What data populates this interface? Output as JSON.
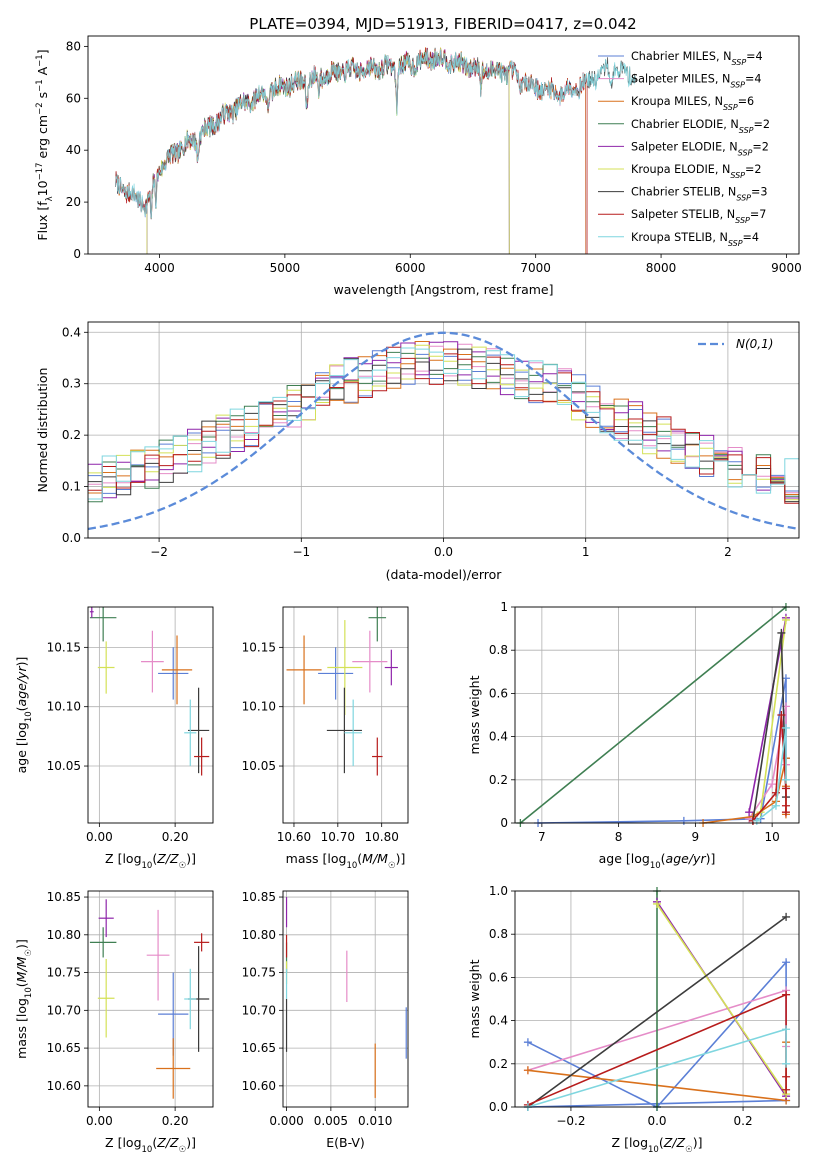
{
  "figure_title": "PLATE=0394, MJD=51913, FIBERID=0417, z=0.042",
  "colors": {
    "Chabrier MILES": "#5b7fd6",
    "Salpeter MILES": "#e58cc8",
    "Kroupa MILES": "#d9711c",
    "Chabrier ELODIE": "#3f7f52",
    "Salpeter ELODIE": "#8e24aa",
    "Kroupa ELODIE": "#d4e157",
    "Chabrier STELIB": "#3c3c3c",
    "Salpeter STELIB": "#b71c1c",
    "Kroupa STELIB": "#7fd6df",
    "gaussian": "#5b8bd9"
  },
  "chart_data": [
    {
      "id": "spectrum",
      "type": "line",
      "title": "",
      "xlabel": "wavelength [Angstrom, rest frame]",
      "ylabel": "Flux [f_λ 10^-17 erg cm^-2 s^-1 A^-1]",
      "xlim": [
        3430,
        9100
      ],
      "ylim": [
        0,
        84
      ],
      "xticks": [
        4000,
        5000,
        6000,
        7000,
        8000,
        9000
      ],
      "yticks": [
        0,
        20,
        40,
        60,
        80
      ],
      "grid": false,
      "legend_position": "top-right",
      "continuum_anchors": {
        "wavelength": [
          3650,
          3800,
          3900,
          3950,
          4000,
          4100,
          4200,
          4300,
          4400,
          4600,
          4800,
          5000,
          5200,
          5400,
          5600,
          5800,
          6000,
          6200,
          6400,
          6600,
          6800,
          7000,
          7200,
          7400,
          7600,
          7800
        ],
        "flux": [
          27,
          22,
          19,
          27,
          33,
          38,
          42,
          45,
          49,
          56,
          61,
          65,
          67,
          70,
          71,
          72,
          73,
          76,
          73,
          71,
          70,
          64,
          62,
          66,
          72,
          68
        ]
      },
      "series": [
        {
          "name": "Chabrier MILES",
          "n_ssp": "4",
          "range": [
            3650,
            7400
          ]
        },
        {
          "name": "Salpeter MILES",
          "n_ssp": "4",
          "range": [
            3650,
            7400
          ]
        },
        {
          "name": "Kroupa MILES",
          "n_ssp": "6",
          "range": [
            3650,
            7400
          ]
        },
        {
          "name": "Chabrier ELODIE",
          "n_ssp": "2",
          "range": [
            3900,
            6790
          ]
        },
        {
          "name": "Salpeter ELODIE",
          "n_ssp": "2",
          "range": [
            3900,
            6790
          ]
        },
        {
          "name": "Kroupa ELODIE",
          "n_ssp": "2",
          "range": [
            3900,
            6790
          ]
        },
        {
          "name": "Chabrier STELIB",
          "n_ssp": "3",
          "range": [
            3650,
            7800
          ]
        },
        {
          "name": "Salpeter STELIB",
          "n_ssp": "7",
          "range": [
            3650,
            7410
          ]
        },
        {
          "name": "Kroupa STELIB",
          "n_ssp": "4",
          "range": [
            3650,
            7800
          ]
        }
      ]
    },
    {
      "id": "residual_histogram",
      "type": "line",
      "xlabel": "(data-model)/error",
      "ylabel": "Normed distribution",
      "xlim": [
        -2.5,
        2.5
      ],
      "ylim": [
        0,
        0.42
      ],
      "xticks": [
        -2,
        -1,
        0,
        1,
        2
      ],
      "yticks": [
        0.0,
        0.1,
        0.2,
        0.3,
        0.4
      ],
      "grid": true,
      "legend_position": "top-right",
      "legend_label": "N(0,1)",
      "bin_width": 0.1,
      "gaussian": {
        "mean": 0,
        "sigma": 1,
        "peak": 0.399
      }
    },
    {
      "id": "age_vs_Z",
      "type": "scatter",
      "xlabel": "Z [log10(Z/Z☉)]",
      "ylabel": "age [log10(age/yr)]",
      "xlim": [
        -0.03,
        0.3
      ],
      "ylim": [
        10.002,
        10.184
      ],
      "xticks": [
        0.0,
        0.2
      ],
      "yticks": [
        10.05,
        10.1,
        10.15
      ],
      "grid": true,
      "points": [
        {
          "name": "Chabrier MILES",
          "x": 0.195,
          "y": 10.128,
          "xerr": 0.04,
          "yerr": 0.022
        },
        {
          "name": "Salpeter MILES",
          "x": 0.14,
          "y": 10.138,
          "xerr": 0.03,
          "yerr": 0.026
        },
        {
          "name": "Kroupa MILES",
          "x": 0.205,
          "y": 10.131,
          "xerr": 0.04,
          "yerr": 0.029
        },
        {
          "name": "Chabrier ELODIE",
          "x": 0.01,
          "y": 10.175,
          "xerr": 0.035,
          "yerr": 0.02
        },
        {
          "name": "Salpeter ELODIE",
          "x": -0.02,
          "y": 10.18,
          "xerr": 0.005,
          "yerr": 0.005
        },
        {
          "name": "Kroupa ELODIE",
          "x": 0.018,
          "y": 10.133,
          "xerr": 0.022,
          "yerr": 0.022
        },
        {
          "name": "Chabrier STELIB",
          "x": 0.262,
          "y": 10.08,
          "xerr": 0.028,
          "yerr": 0.036
        },
        {
          "name": "Salpeter STELIB",
          "x": 0.27,
          "y": 10.058,
          "xerr": 0.02,
          "yerr": 0.016
        },
        {
          "name": "Kroupa STELIB",
          "x": 0.24,
          "y": 10.078,
          "xerr": 0.016,
          "yerr": 0.028
        }
      ]
    },
    {
      "id": "age_vs_mass",
      "type": "scatter",
      "xlabel": "mass [log10(M/M☉)]",
      "ylabel": "",
      "xlim": [
        10.575,
        10.86
      ],
      "ylim": [
        10.002,
        10.184
      ],
      "xticks": [
        10.6,
        10.7,
        10.8
      ],
      "yticks": [
        10.05,
        10.1,
        10.15
      ],
      "grid": true,
      "points": [
        {
          "name": "Chabrier MILES",
          "x": 10.695,
          "y": 10.128,
          "xerr": 0.04,
          "yerr": 0.022
        },
        {
          "name": "Salpeter MILES",
          "x": 10.773,
          "y": 10.138,
          "xerr": 0.04,
          "yerr": 0.026
        },
        {
          "name": "Kroupa MILES",
          "x": 10.623,
          "y": 10.131,
          "xerr": 0.04,
          "yerr": 0.029
        },
        {
          "name": "Chabrier ELODIE",
          "x": 10.79,
          "y": 10.175,
          "xerr": 0.02,
          "yerr": 0.02
        },
        {
          "name": "Salpeter ELODIE",
          "x": 10.822,
          "y": 10.133,
          "xerr": 0.015,
          "yerr": 0.015
        },
        {
          "name": "Kroupa ELODIE",
          "x": 10.716,
          "y": 10.133,
          "xerr": 0.04,
          "yerr": 0.04
        },
        {
          "name": "Chabrier STELIB",
          "x": 10.715,
          "y": 10.08,
          "xerr": 0.04,
          "yerr": 0.036
        },
        {
          "name": "Salpeter STELIB",
          "x": 10.79,
          "y": 10.058,
          "xerr": 0.012,
          "yerr": 0.016
        },
        {
          "name": "Kroupa STELIB",
          "x": 10.735,
          "y": 10.078,
          "xerr": 0.02,
          "yerr": 0.028
        }
      ]
    },
    {
      "id": "mass_vs_Z",
      "type": "scatter",
      "xlabel": "Z [log10(Z/Z☉)]",
      "ylabel": "mass [log10(M/M☉)]",
      "xlim": [
        -0.03,
        0.3
      ],
      "ylim": [
        10.572,
        10.858
      ],
      "xticks": [
        0.0,
        0.2
      ],
      "yticks": [
        10.6,
        10.65,
        10.7,
        10.75,
        10.8,
        10.85
      ],
      "grid": true,
      "points": [
        {
          "name": "Chabrier MILES",
          "x": 0.195,
          "y": 10.695,
          "xerr": 0.04,
          "yerr": 0.055
        },
        {
          "name": "Salpeter MILES",
          "x": 0.155,
          "y": 10.773,
          "xerr": 0.03,
          "yerr": 0.06
        },
        {
          "name": "Kroupa MILES",
          "x": 0.195,
          "y": 10.623,
          "xerr": 0.045,
          "yerr": 0.04
        },
        {
          "name": "Chabrier ELODIE",
          "x": 0.01,
          "y": 10.79,
          "xerr": 0.035,
          "yerr": 0.02
        },
        {
          "name": "Salpeter ELODIE",
          "x": 0.018,
          "y": 10.822,
          "xerr": 0.02,
          "yerr": 0.025
        },
        {
          "name": "Kroupa ELODIE",
          "x": 0.018,
          "y": 10.716,
          "xerr": 0.022,
          "yerr": 0.052
        },
        {
          "name": "Chabrier STELIB",
          "x": 0.262,
          "y": 10.715,
          "xerr": 0.028,
          "yerr": 0.07
        },
        {
          "name": "Salpeter STELIB",
          "x": 0.27,
          "y": 10.79,
          "xerr": 0.02,
          "yerr": 0.012
        },
        {
          "name": "Kroupa STELIB",
          "x": 0.24,
          "y": 10.715,
          "xerr": 0.016,
          "yerr": 0.04
        }
      ]
    },
    {
      "id": "mass_vs_ebv",
      "type": "scatter",
      "xlabel": "E(B-V)",
      "ylabel": "",
      "xlim": [
        -0.0004,
        0.0137
      ],
      "ylim": [
        10.572,
        10.858
      ],
      "xticks": [
        0.0,
        0.005,
        0.01
      ],
      "yticks": [
        10.6,
        10.65,
        10.7,
        10.75,
        10.8,
        10.85
      ],
      "grid": true,
      "points": [
        {
          "name": "Chabrier MILES",
          "x": 0.0135,
          "y": 10.67,
          "xerr": 0,
          "yerr": 0.034
        },
        {
          "name": "Salpeter MILES",
          "x": 0.0068,
          "y": 10.745,
          "xerr": 0,
          "yerr": 0.034
        },
        {
          "name": "Kroupa MILES",
          "x": 0.01,
          "y": 10.62,
          "xerr": 0,
          "yerr": 0.036
        },
        {
          "name": "Chabrier ELODIE",
          "x": 0.0,
          "y": 10.77,
          "xerr": 0,
          "yerr": 0.02
        },
        {
          "name": "Salpeter ELODIE",
          "x": 0.0,
          "y": 10.83,
          "xerr": 0,
          "yerr": 0.02
        },
        {
          "name": "Kroupa ELODIE",
          "x": 0.0,
          "y": 10.75,
          "xerr": 0,
          "yerr": 0.015
        },
        {
          "name": "Chabrier STELIB",
          "x": 0.0,
          "y": 10.68,
          "xerr": 0,
          "yerr": 0.035
        },
        {
          "name": "Salpeter STELIB",
          "x": 0.0,
          "y": 10.785,
          "xerr": 0,
          "yerr": 0.015
        },
        {
          "name": "Kroupa STELIB",
          "x": 0.0,
          "y": 10.735,
          "xerr": 0,
          "yerr": 0.02
        }
      ]
    },
    {
      "id": "weight_vs_age",
      "type": "line",
      "xlabel": "age [log10(age/yr)]",
      "ylabel": "mass weight",
      "xlim": [
        6.65,
        10.35
      ],
      "ylim": [
        0,
        1.0
      ],
      "xticks": [
        7,
        8,
        9,
        10
      ],
      "yticks": [
        0.0,
        0.2,
        0.4,
        0.6,
        0.8,
        1.0
      ],
      "grid": true,
      "series": [
        {
          "name": "Chabrier MILES",
          "x": [
            6.95,
            8.85,
            9.85,
            10.18,
            10.18
          ],
          "y": [
            0.0,
            0.01,
            0.02,
            0.67,
            0.3
          ]
        },
        {
          "name": "Salpeter MILES",
          "x": [
            9.7,
            10.0,
            10.18,
            10.18
          ],
          "y": [
            0.02,
            0.18,
            0.54,
            0.27
          ]
        },
        {
          "name": "Kroupa MILES",
          "x": [
            9.1,
            9.75,
            10.05,
            10.18,
            10.18,
            10.18
          ],
          "y": [
            0.0,
            0.03,
            0.1,
            0.3,
            0.17,
            0.04
          ]
        },
        {
          "name": "Chabrier ELODIE",
          "x": [
            6.72,
            10.18
          ],
          "y": [
            0.0,
            1.0
          ]
        },
        {
          "name": "Salpeter ELODIE",
          "x": [
            9.7,
            10.18
          ],
          "y": [
            0.05,
            0.95
          ]
        },
        {
          "name": "Kroupa ELODIE",
          "x": [
            9.85,
            10.18
          ],
          "y": [
            0.05,
            0.94
          ]
        },
        {
          "name": "Chabrier STELIB",
          "x": [
            9.75,
            10.12,
            10.18
          ],
          "y": [
            0.01,
            0.88,
            0.12
          ]
        },
        {
          "name": "Salpeter STELIB",
          "x": [
            9.75,
            10.05,
            10.12,
            10.18,
            10.18,
            10.18
          ],
          "y": [
            0.01,
            0.14,
            0.5,
            0.16,
            0.08,
            0.05
          ]
        },
        {
          "name": "Kroupa STELIB",
          "x": [
            9.8,
            10.05,
            10.18,
            10.18
          ],
          "y": [
            0.01,
            0.08,
            0.44,
            0.2
          ]
        }
      ]
    },
    {
      "id": "weight_vs_Z",
      "type": "line",
      "xlabel": "Z [log10(Z/Z☉)]",
      "ylabel": "mass weight",
      "xlim": [
        -0.33,
        0.33
      ],
      "ylim": [
        0,
        1.0
      ],
      "xticks": [
        -0.2,
        0.0,
        0.2
      ],
      "yticks": [
        0.0,
        0.2,
        0.4,
        0.6,
        0.8,
        1.0
      ],
      "grid": true,
      "series": [
        {
          "name": "Chabrier MILES",
          "x": [
            -0.3,
            0.0,
            0.0,
            0.3,
            0.3,
            -0.3
          ],
          "y": [
            0.3,
            0.0,
            0.0,
            0.67,
            0.03,
            0.0
          ]
        },
        {
          "name": "Salpeter MILES",
          "x": [
            -0.3,
            0.3,
            0.3
          ],
          "y": [
            0.17,
            0.54,
            0.28
          ]
        },
        {
          "name": "Kroupa MILES",
          "x": [
            -0.3,
            0.3,
            0.3
          ],
          "y": [
            0.17,
            0.03,
            0.3
          ]
        },
        {
          "name": "Chabrier ELODIE",
          "x": [
            0.0,
            0.0
          ],
          "y": [
            0.0,
            1.0
          ]
        },
        {
          "name": "Salpeter ELODIE",
          "x": [
            0.0,
            0.3
          ],
          "y": [
            0.95,
            0.05
          ]
        },
        {
          "name": "Kroupa ELODIE",
          "x": [
            0.0,
            0.3
          ],
          "y": [
            0.94,
            0.06
          ]
        },
        {
          "name": "Chabrier STELIB",
          "x": [
            -0.3,
            0.3
          ],
          "y": [
            0.0,
            0.88
          ]
        },
        {
          "name": "Salpeter STELIB",
          "x": [
            -0.3,
            0.3,
            0.3,
            0.3
          ],
          "y": [
            0.01,
            0.52,
            0.14,
            0.08
          ]
        },
        {
          "name": "Kroupa STELIB",
          "x": [
            -0.3,
            0.3,
            0.3
          ],
          "y": [
            0.0,
            0.36,
            0.2
          ]
        }
      ]
    }
  ]
}
